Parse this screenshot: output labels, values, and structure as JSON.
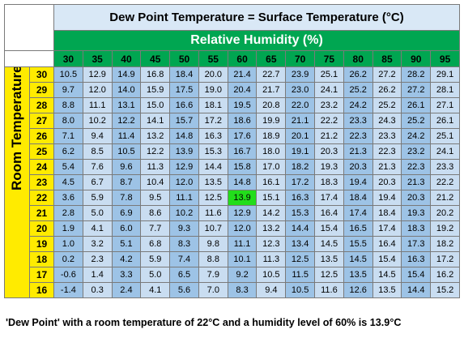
{
  "title": "Dew Point Temperature = Surface Temperature (°C)",
  "humidity_label": "Relative Humidity (%)",
  "room_temp_label": "Room Temperature (°C)",
  "caption": "'Dew Point' with a room temperature of 22°C and a humidity level of 60% is 13.9°C",
  "colors": {
    "header_green": "#00a651",
    "room_yellow": "#ffeb00",
    "title_blue": "#d9e8f6",
    "cell_dark": "#9dc3e6",
    "cell_light": "#c9ddf1",
    "highlight_green": "#22dd1b"
  },
  "highlight": {
    "temperature": "22",
    "humidity": "60",
    "value": "13.9"
  },
  "humidities": [
    "30",
    "35",
    "40",
    "45",
    "50",
    "55",
    "60",
    "65",
    "70",
    "75",
    "80",
    "85",
    "90",
    "95"
  ],
  "rows": [
    {
      "temp": "30",
      "values": [
        "10.5",
        "12.9",
        "14.9",
        "16.8",
        "18.4",
        "20.0",
        "21.4",
        "22.7",
        "23.9",
        "25.1",
        "26.2",
        "27.2",
        "28.2",
        "29.1"
      ]
    },
    {
      "temp": "29",
      "values": [
        "9.7",
        "12.0",
        "14.0",
        "15.9",
        "17.5",
        "19.0",
        "20.4",
        "21.7",
        "23.0",
        "24.1",
        "25.2",
        "26.2",
        "27.2",
        "28.1"
      ]
    },
    {
      "temp": "28",
      "values": [
        "8.8",
        "11.1",
        "13.1",
        "15.0",
        "16.6",
        "18.1",
        "19.5",
        "20.8",
        "22.0",
        "23.2",
        "24.2",
        "25.2",
        "26.1",
        "27.1"
      ]
    },
    {
      "temp": "27",
      "values": [
        "8.0",
        "10.2",
        "12.2",
        "14.1",
        "15.7",
        "17.2",
        "18.6",
        "19.9",
        "21.1",
        "22.2",
        "23.3",
        "24.3",
        "25.2",
        "26.1"
      ]
    },
    {
      "temp": "26",
      "values": [
        "7.1",
        "9.4",
        "11.4",
        "13.2",
        "14.8",
        "16.3",
        "17.6",
        "18.9",
        "20.1",
        "21.2",
        "22.3",
        "23.3",
        "24.2",
        "25.1"
      ]
    },
    {
      "temp": "25",
      "values": [
        "6.2",
        "8.5",
        "10.5",
        "12.2",
        "13.9",
        "15.3",
        "16.7",
        "18.0",
        "19.1",
        "20.3",
        "21.3",
        "22.3",
        "23.2",
        "24.1"
      ]
    },
    {
      "temp": "24",
      "values": [
        "5.4",
        "7.6",
        "9.6",
        "11.3",
        "12.9",
        "14.4",
        "15.8",
        "17.0",
        "18.2",
        "19.3",
        "20.3",
        "21.3",
        "22.3",
        "23.3"
      ]
    },
    {
      "temp": "23",
      "values": [
        "4.5",
        "6.7",
        "8.7",
        "10.4",
        "12.0",
        "13.5",
        "14.8",
        "16.1",
        "17.2",
        "18.3",
        "19.4",
        "20.3",
        "21.3",
        "22.2"
      ]
    },
    {
      "temp": "22",
      "values": [
        "3.6",
        "5.9",
        "7.8",
        "9.5",
        "11.1",
        "12.5",
        "13.9",
        "15.1",
        "16.3",
        "17.4",
        "18.4",
        "19.4",
        "20.3",
        "21.2"
      ]
    },
    {
      "temp": "21",
      "values": [
        "2.8",
        "5.0",
        "6.9",
        "8.6",
        "10.2",
        "11.6",
        "12.9",
        "14.2",
        "15.3",
        "16.4",
        "17.4",
        "18.4",
        "19.3",
        "20.2"
      ]
    },
    {
      "temp": "20",
      "values": [
        "1.9",
        "4.1",
        "6.0",
        "7.7",
        "9.3",
        "10.7",
        "12.0",
        "13.2",
        "14.4",
        "15.4",
        "16.5",
        "17.4",
        "18.3",
        "19.2"
      ]
    },
    {
      "temp": "19",
      "values": [
        "1.0",
        "3.2",
        "5.1",
        "6.8",
        "8.3",
        "9.8",
        "11.1",
        "12.3",
        "13.4",
        "14.5",
        "15.5",
        "16.4",
        "17.3",
        "18.2"
      ]
    },
    {
      "temp": "18",
      "values": [
        "0.2",
        "2.3",
        "4.2",
        "5.9",
        "7.4",
        "8.8",
        "10.1",
        "11.3",
        "12.5",
        "13.5",
        "14.5",
        "15.4",
        "16.3",
        "17.2"
      ]
    },
    {
      "temp": "17",
      "values": [
        "-0.6",
        "1.4",
        "3.3",
        "5.0",
        "6.5",
        "7.9",
        "9.2",
        "10.5",
        "11.5",
        "12.5",
        "13.5",
        "14.5",
        "15.4",
        "16.2"
      ]
    },
    {
      "temp": "16",
      "values": [
        "-1.4",
        "0.3",
        "2.4",
        "4.1",
        "5.6",
        "7.0",
        "8.3",
        "9.4",
        "10.5",
        "11.6",
        "12.6",
        "13.5",
        "14.4",
        "15.2"
      ]
    }
  ]
}
